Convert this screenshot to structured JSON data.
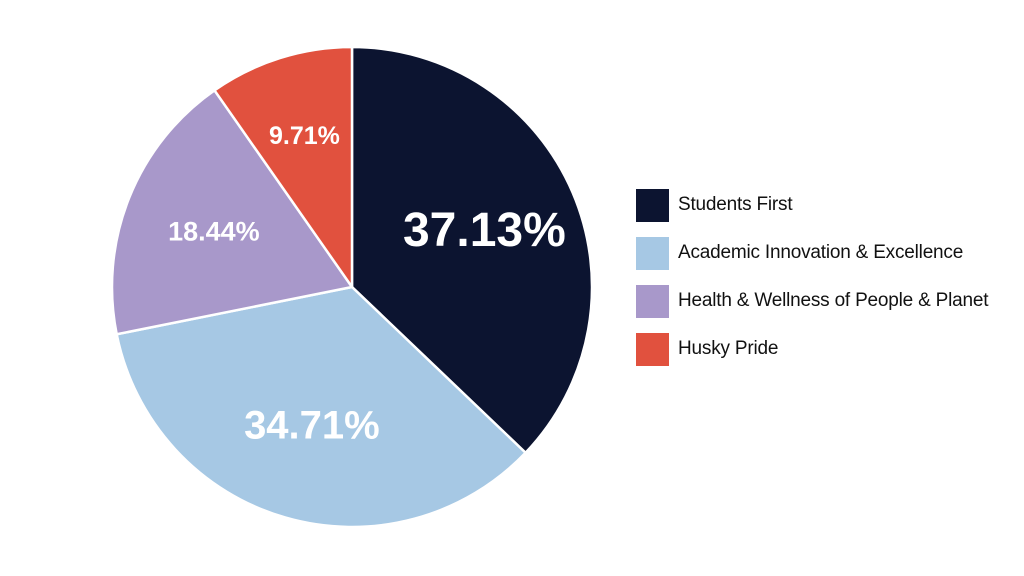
{
  "chart_data": {
    "type": "pie",
    "categories": [
      "Students First",
      "Academic Innovation & Excellence",
      "Health & Wellness of People & Planet",
      "Husky Pride"
    ],
    "values": [
      37.13,
      34.71,
      18.44,
      9.71
    ],
    "value_labels": [
      "37.13%",
      "34.71%",
      "18.44%",
      "9.71%"
    ],
    "colors": [
      "#0c1430",
      "#a6c8e4",
      "#a898ca",
      "#e1513e"
    ],
    "start_angle_deg": 0,
    "direction": "clockwise",
    "legend_position": "right",
    "title": ""
  }
}
